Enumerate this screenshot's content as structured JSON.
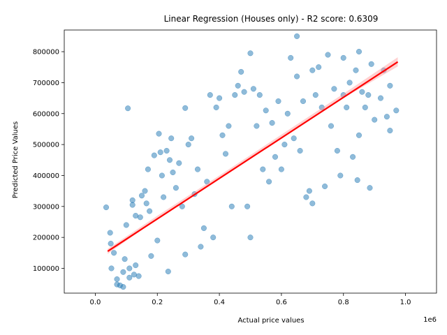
{
  "chart_data": {
    "type": "scatter",
    "title": "Linear Regression (Houses only) - R2 score: 0.6309",
    "xlabel": "Actual price values",
    "ylabel": "Predicted Price Values",
    "x_offset_label": "1e6",
    "xlim": [
      -0.1,
      1.1
    ],
    "ylim": [
      20000,
      870000
    ],
    "xticks": [
      0.0,
      0.2,
      0.4,
      0.6,
      0.8,
      1.0
    ],
    "xtick_labels": [
      "0.0",
      "0.2",
      "0.4",
      "0.6",
      "0.8",
      "1.0"
    ],
    "yticks": [
      100000,
      200000,
      300000,
      400000,
      500000,
      600000,
      700000,
      800000
    ],
    "ytick_labels": [
      "100000",
      "200000",
      "300000",
      "400000",
      "500000",
      "600000",
      "700000",
      "800000"
    ],
    "grid": false,
    "colors": {
      "points": "#1f77b4",
      "regression_line": "#ff0000",
      "confidence_band": "#ff9999"
    },
    "regression_line": {
      "x": [
        0.04,
        0.975
      ],
      "y": [
        155000,
        767000
      ]
    },
    "confidence_band": {
      "x": [
        0.04,
        0.2,
        0.4,
        0.6,
        0.8,
        0.975
      ],
      "y_low": [
        147000,
        260000,
        392000,
        522000,
        650000,
        752000
      ],
      "y_high": [
        163000,
        270000,
        400000,
        532000,
        664000,
        782000
      ]
    },
    "points": [
      [
        0.035,
        297000
      ],
      [
        0.048,
        215000
      ],
      [
        0.05,
        180000
      ],
      [
        0.052,
        100000
      ],
      [
        0.06,
        150000
      ],
      [
        0.07,
        65000
      ],
      [
        0.07,
        48000
      ],
      [
        0.08,
        45000
      ],
      [
        0.09,
        40000
      ],
      [
        0.09,
        88000
      ],
      [
        0.095,
        130000
      ],
      [
        0.1,
        240000
      ],
      [
        0.105,
        617000
      ],
      [
        0.11,
        100000
      ],
      [
        0.11,
        70000
      ],
      [
        0.12,
        320000
      ],
      [
        0.12,
        305000
      ],
      [
        0.125,
        80000
      ],
      [
        0.13,
        270000
      ],
      [
        0.13,
        110000
      ],
      [
        0.14,
        75000
      ],
      [
        0.145,
        265000
      ],
      [
        0.15,
        335000
      ],
      [
        0.16,
        350000
      ],
      [
        0.165,
        310000
      ],
      [
        0.17,
        420000
      ],
      [
        0.175,
        285000
      ],
      [
        0.18,
        140000
      ],
      [
        0.19,
        465000
      ],
      [
        0.2,
        190000
      ],
      [
        0.205,
        535000
      ],
      [
        0.21,
        475000
      ],
      [
        0.215,
        400000
      ],
      [
        0.22,
        330000
      ],
      [
        0.23,
        480000
      ],
      [
        0.235,
        90000
      ],
      [
        0.24,
        450000
      ],
      [
        0.245,
        520000
      ],
      [
        0.25,
        410000
      ],
      [
        0.26,
        360000
      ],
      [
        0.27,
        440000
      ],
      [
        0.28,
        300000
      ],
      [
        0.29,
        618000
      ],
      [
        0.29,
        145000
      ],
      [
        0.3,
        500000
      ],
      [
        0.31,
        520000
      ],
      [
        0.32,
        340000
      ],
      [
        0.33,
        420000
      ],
      [
        0.34,
        170000
      ],
      [
        0.35,
        230000
      ],
      [
        0.36,
        380000
      ],
      [
        0.37,
        660000
      ],
      [
        0.38,
        200000
      ],
      [
        0.39,
        620000
      ],
      [
        0.4,
        650000
      ],
      [
        0.41,
        530000
      ],
      [
        0.42,
        470000
      ],
      [
        0.43,
        560000
      ],
      [
        0.44,
        300000
      ],
      [
        0.45,
        660000
      ],
      [
        0.46,
        690000
      ],
      [
        0.47,
        735000
      ],
      [
        0.48,
        670000
      ],
      [
        0.49,
        300000
      ],
      [
        0.5,
        795000
      ],
      [
        0.5,
        200000
      ],
      [
        0.51,
        680000
      ],
      [
        0.52,
        560000
      ],
      [
        0.53,
        660000
      ],
      [
        0.54,
        420000
      ],
      [
        0.55,
        610000
      ],
      [
        0.56,
        380000
      ],
      [
        0.57,
        570000
      ],
      [
        0.58,
        460000
      ],
      [
        0.59,
        640000
      ],
      [
        0.6,
        420000
      ],
      [
        0.61,
        500000
      ],
      [
        0.62,
        600000
      ],
      [
        0.63,
        780000
      ],
      [
        0.64,
        520000
      ],
      [
        0.65,
        850000
      ],
      [
        0.65,
        720000
      ],
      [
        0.66,
        480000
      ],
      [
        0.67,
        640000
      ],
      [
        0.68,
        330000
      ],
      [
        0.69,
        350000
      ],
      [
        0.7,
        310000
      ],
      [
        0.7,
        740000
      ],
      [
        0.71,
        660000
      ],
      [
        0.72,
        750000
      ],
      [
        0.73,
        620000
      ],
      [
        0.74,
        365000
      ],
      [
        0.75,
        790000
      ],
      [
        0.76,
        560000
      ],
      [
        0.77,
        680000
      ],
      [
        0.78,
        480000
      ],
      [
        0.79,
        400000
      ],
      [
        0.8,
        660000
      ],
      [
        0.8,
        780000
      ],
      [
        0.81,
        620000
      ],
      [
        0.82,
        700000
      ],
      [
        0.83,
        460000
      ],
      [
        0.84,
        740000
      ],
      [
        0.845,
        385000
      ],
      [
        0.85,
        800000
      ],
      [
        0.85,
        530000
      ],
      [
        0.86,
        670000
      ],
      [
        0.87,
        620000
      ],
      [
        0.88,
        660000
      ],
      [
        0.885,
        360000
      ],
      [
        0.89,
        760000
      ],
      [
        0.9,
        580000
      ],
      [
        0.92,
        650000
      ],
      [
        0.93,
        740000
      ],
      [
        0.94,
        590000
      ],
      [
        0.95,
        690000
      ],
      [
        0.95,
        545000
      ],
      [
        0.97,
        610000
      ]
    ]
  }
}
